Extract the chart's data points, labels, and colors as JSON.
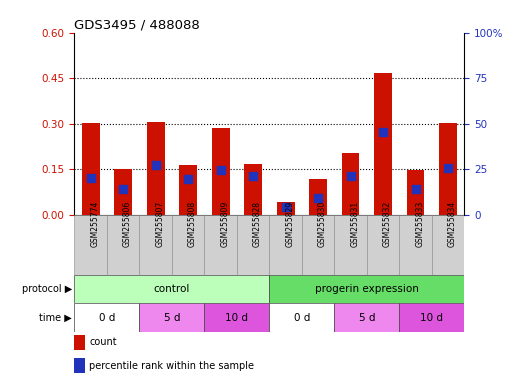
{
  "title": "GDS3495 / 488088",
  "samples": [
    "GSM255774",
    "GSM255806",
    "GSM255807",
    "GSM255808",
    "GSM255809",
    "GSM255828",
    "GSM255829",
    "GSM255830",
    "GSM255831",
    "GSM255832",
    "GSM255833",
    "GSM255834"
  ],
  "red_bars": [
    0.302,
    0.153,
    0.305,
    0.163,
    0.287,
    0.168,
    0.044,
    0.118,
    0.205,
    0.468,
    0.148,
    0.302
  ],
  "blue_dots": [
    0.123,
    0.085,
    0.163,
    0.118,
    0.148,
    0.128,
    0.028,
    0.055,
    0.128,
    0.272,
    0.085,
    0.155
  ],
  "left_ylim": [
    0,
    0.6
  ],
  "left_yticks": [
    0,
    0.15,
    0.3,
    0.45,
    0.6
  ],
  "right_ylim": [
    0,
    100
  ],
  "right_yticks": [
    0,
    25,
    50,
    75,
    100
  ],
  "right_yticklabels": [
    "0",
    "25",
    "50",
    "75",
    "100%"
  ],
  "bar_color": "#cc1100",
  "dot_color": "#2233bb",
  "protocol_groups": [
    {
      "label": "control",
      "start": 0,
      "end": 6,
      "color": "#bbffbb"
    },
    {
      "label": "progerin expression",
      "start": 6,
      "end": 12,
      "color": "#66dd66"
    }
  ],
  "time_groups": [
    {
      "label": "0 d",
      "start": 0,
      "end": 2,
      "color": "#ffffff"
    },
    {
      "label": "5 d",
      "start": 2,
      "end": 4,
      "color": "#ee88ee"
    },
    {
      "label": "10 d",
      "start": 4,
      "end": 6,
      "color": "#dd55dd"
    },
    {
      "label": "0 d",
      "start": 6,
      "end": 8,
      "color": "#ffffff"
    },
    {
      "label": "5 d",
      "start": 8,
      "end": 10,
      "color": "#ee88ee"
    },
    {
      "label": "10 d",
      "start": 10,
      "end": 12,
      "color": "#dd55dd"
    }
  ],
  "legend_items": [
    {
      "label": "count",
      "color": "#cc1100"
    },
    {
      "label": "percentile rank within the sample",
      "color": "#2233bb"
    }
  ],
  "left_tick_color": "#cc1100",
  "right_tick_color": "#2233bb",
  "bar_width": 0.55,
  "dot_size": 28,
  "label_box_color": "#d0d0d0",
  "background_color": "#ffffff"
}
